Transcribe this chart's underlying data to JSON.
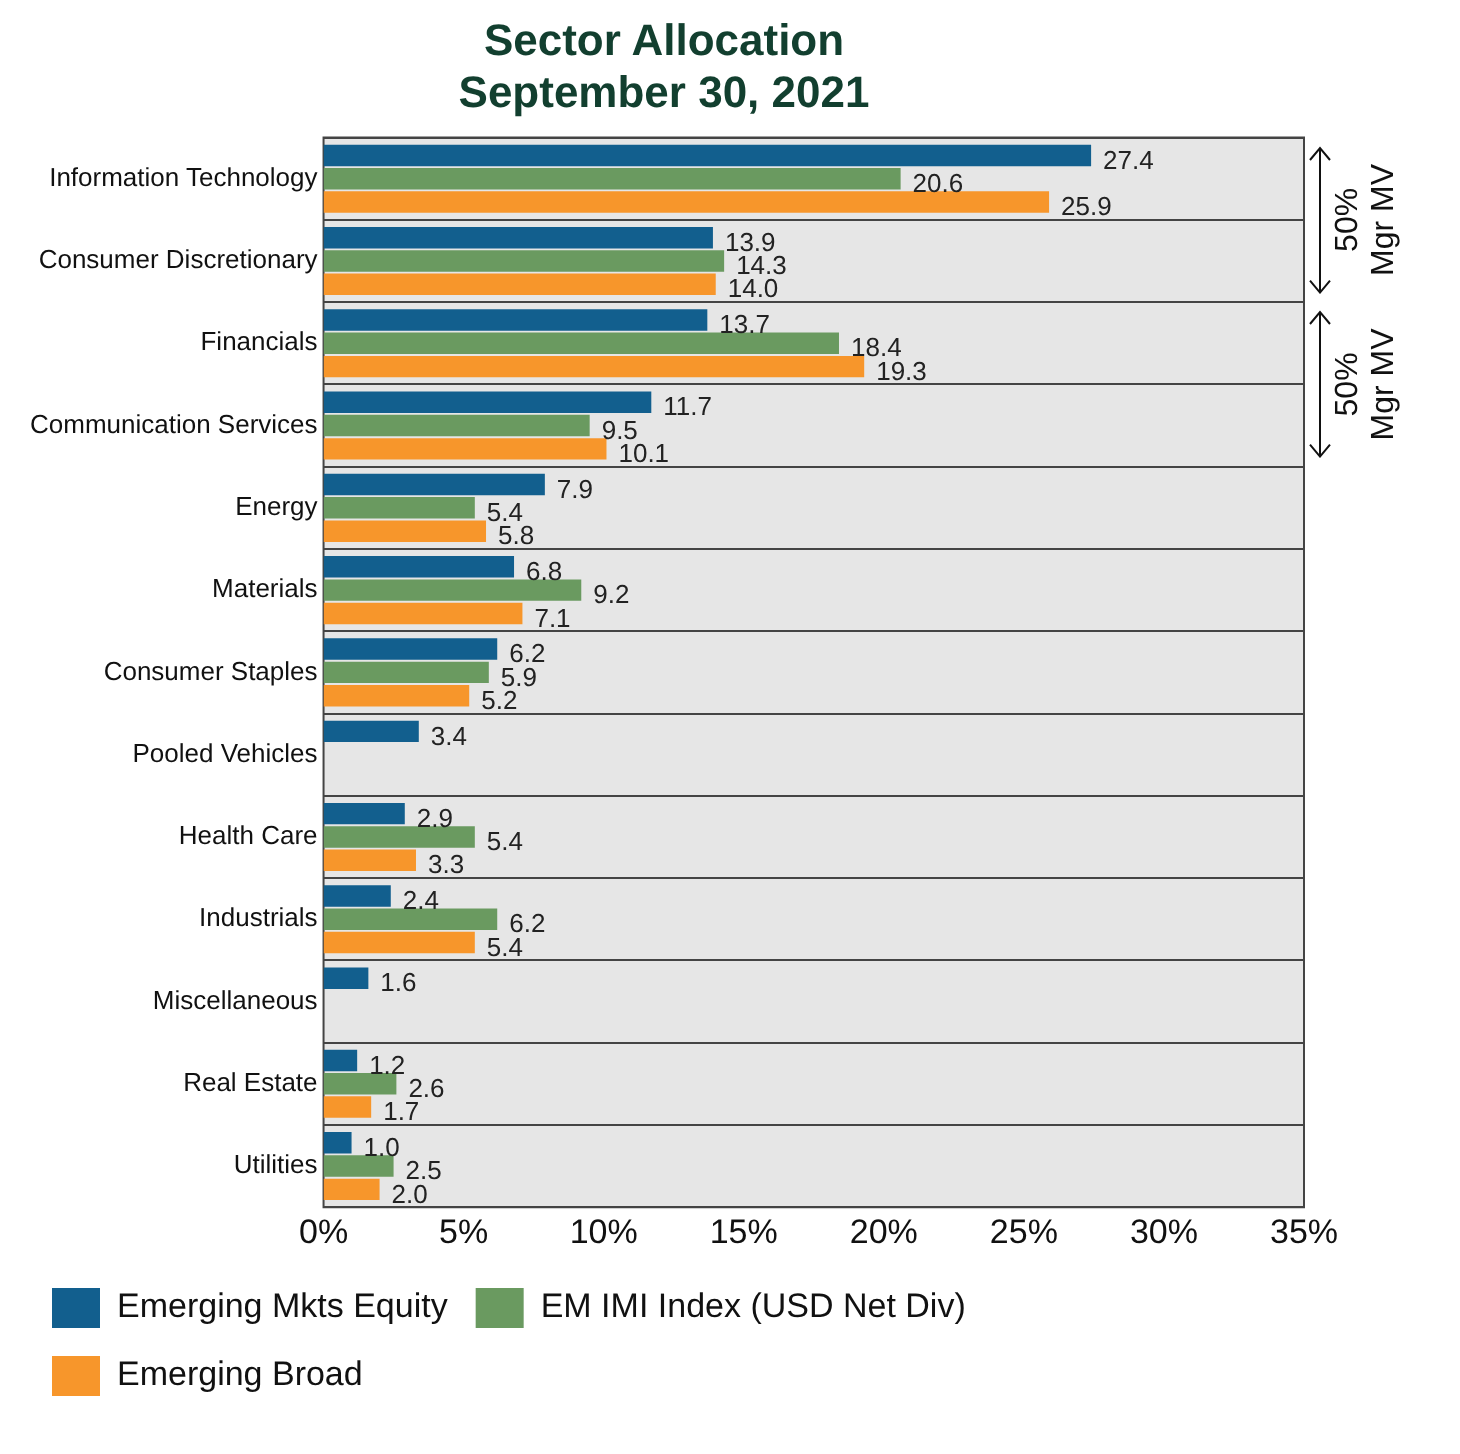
{
  "chart_data": {
    "type": "bar",
    "orientation": "horizontal",
    "title": "Sector Allocation\nSeptember 30, 2021",
    "categories": [
      "Information Technology",
      "Consumer Discretionary",
      "Financials",
      "Communication Services",
      "Energy",
      "Materials",
      "Consumer Staples",
      "Pooled Vehicles",
      "Health Care",
      "Industrials",
      "Miscellaneous",
      "Real Estate",
      "Utilities"
    ],
    "series": [
      {
        "name": "Emerging Mkts Equity",
        "color": "#125f8e",
        "values": [
          27.4,
          13.9,
          13.7,
          11.7,
          7.9,
          6.8,
          6.2,
          3.4,
          2.9,
          2.4,
          1.6,
          1.2,
          1.0
        ],
        "value_labels": [
          "27.4",
          "13.9",
          "13.7",
          "11.7",
          "7.9",
          "6.8",
          "6.2",
          "3.4",
          "2.9",
          "2.4",
          "1.6",
          "1.2",
          "1.0"
        ]
      },
      {
        "name": "EM IMI Index (USD Net Div)",
        "color": "#6a9a60",
        "values": [
          20.6,
          14.3,
          18.4,
          9.5,
          5.4,
          9.2,
          5.9,
          null,
          5.4,
          6.2,
          null,
          2.6,
          2.5
        ],
        "value_labels": [
          "20.6",
          "14.3",
          "18.4",
          "9.5",
          "5.4",
          "9.2",
          "5.9",
          null,
          "5.4",
          "6.2",
          null,
          "2.6",
          "2.5"
        ]
      },
      {
        "name": "Emerging Broad",
        "color": "#f7962b",
        "values": [
          25.9,
          14.0,
          19.3,
          10.1,
          5.8,
          7.1,
          5.2,
          null,
          3.3,
          5.4,
          null,
          1.7,
          2.0
        ],
        "value_labels": [
          "25.9",
          "14.0",
          "19.3",
          "10.1",
          "5.8",
          "7.1",
          "5.2",
          null,
          "3.3",
          "5.4",
          null,
          "1.7",
          "2.0"
        ]
      }
    ],
    "xlim": [
      0,
      35
    ],
    "xticks": [
      {
        "value": 0,
        "label": "0%"
      },
      {
        "value": 5,
        "label": "5%"
      },
      {
        "value": 10,
        "label": "10%"
      },
      {
        "value": 15,
        "label": "15%"
      },
      {
        "value": 20,
        "label": "20%"
      },
      {
        "value": 25,
        "label": "25%"
      },
      {
        "value": 30,
        "label": "30%"
      },
      {
        "value": 35,
        "label": "35%"
      }
    ],
    "grid": "y",
    "legend": "bottom",
    "annotations": [
      "50% Mgr MV",
      "50% Mgr MV"
    ]
  }
}
